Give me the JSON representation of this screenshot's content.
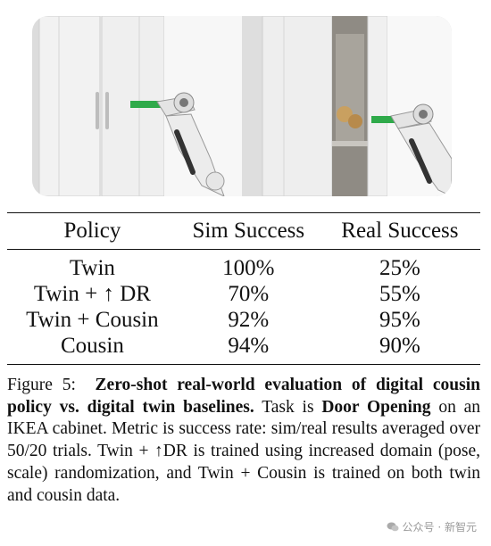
{
  "table": {
    "headers": [
      "Policy",
      "Sim Success",
      "Real Success"
    ],
    "rows": [
      [
        "Twin",
        "100%",
        "25%"
      ],
      [
        "Twin + ↑ DR",
        "70%",
        "55%"
      ],
      [
        "Twin + Cousin",
        "92%",
        "95%"
      ],
      [
        "Cousin",
        "94%",
        "90%"
      ]
    ]
  },
  "caption": {
    "label": "Figure 5:",
    "bold_title": "Zero-shot real-world evaluation of digital cousin policy vs. digital twin baselines.",
    "text_1": " Task is ",
    "bold_task": "Door Opening",
    "text_2": " on an IKEA cabinet. Metric is success rate: sim/real results averaged over 50/20 trials. Twin + ↑DR is trained using increased domain (pose, scale) randomization, and Twin + Cousin is trained on both twin and cousin data."
  },
  "watermark": {
    "text": "公众号 · 新智元",
    "icon": "wechat-icon"
  }
}
